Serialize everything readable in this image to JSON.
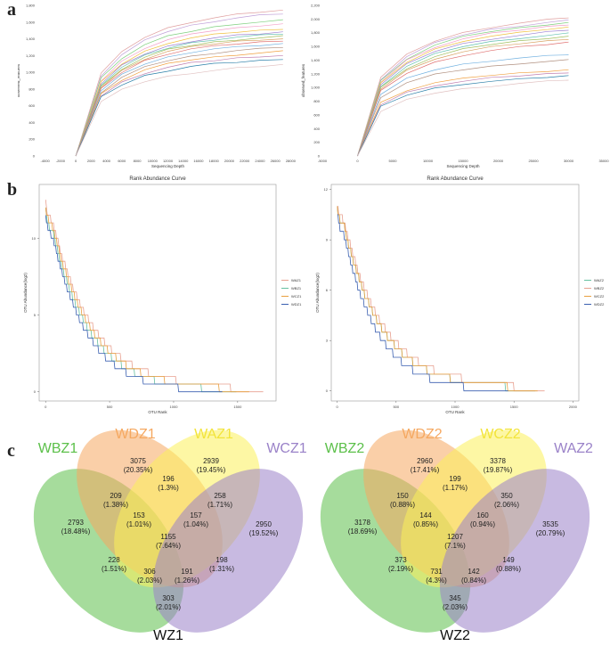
{
  "labels": {
    "a": "a",
    "b": "b",
    "c": "c"
  },
  "colors": {
    "rare": [
      "#e0a0a0",
      "#c0a0d8",
      "#7fd07f",
      "#f2a0c8",
      "#f0c040",
      "#9a7fd0",
      "#60c0b0",
      "#a0c060",
      "#d8a060",
      "#e07070",
      "#70b0e0",
      "#b09080",
      "#f0a040",
      "#c07fb0",
      "#2a7fa8",
      "#e0c0c0"
    ],
    "rank": {
      "A": "#e8a090",
      "B": "#66c0a0",
      "C": "#e8a040",
      "D": "#3a5fb0"
    },
    "venn": {
      "B": "#5cc04a",
      "D": "#f5a860",
      "C": "#fbf05a",
      "A": "#9a82c8"
    }
  },
  "chart_data": [
    {
      "type": "line",
      "panel": "a-left",
      "xlabel": "Sequencing Depth",
      "ylabel": "observed_features",
      "xlim": [
        -5000,
        29000
      ],
      "ylim": [
        0,
        1800
      ],
      "x_ticks": [
        "-4000",
        "-2000",
        "0",
        "2000",
        "4000",
        "6000",
        "8000",
        "10000",
        "12000",
        "14000",
        "16000",
        "18000",
        "20000",
        "22000",
        "24000",
        "26000",
        "28000"
      ],
      "y_ticks": [
        "0",
        "200",
        "400",
        "600",
        "800",
        "1,000",
        "1,200",
        "1,400",
        "1,600",
        "1,800"
      ],
      "x": [
        0,
        3300,
        6000,
        9000,
        12000,
        15000,
        18000,
        21000,
        24000,
        27000
      ],
      "series": [
        {
          "values": [
            0,
            990,
            1240,
            1420,
            1530,
            1600,
            1650,
            1690,
            1720,
            1740
          ]
        },
        {
          "values": [
            0,
            960,
            1210,
            1380,
            1490,
            1560,
            1610,
            1650,
            1680,
            1700
          ]
        },
        {
          "values": [
            0,
            930,
            1170,
            1330,
            1430,
            1490,
            1540,
            1580,
            1600,
            1620
          ]
        },
        {
          "values": [
            0,
            900,
            1130,
            1290,
            1390,
            1450,
            1500,
            1530,
            1560,
            1580
          ]
        },
        {
          "values": [
            0,
            880,
            1100,
            1250,
            1350,
            1410,
            1450,
            1480,
            1500,
            1520
          ]
        },
        {
          "values": [
            0,
            860,
            1080,
            1220,
            1310,
            1370,
            1410,
            1440,
            1460,
            1480
          ]
        },
        {
          "values": [
            0,
            850,
            1060,
            1200,
            1290,
            1350,
            1390,
            1420,
            1440,
            1460
          ]
        },
        {
          "values": [
            0,
            830,
            1040,
            1180,
            1270,
            1320,
            1360,
            1390,
            1410,
            1430
          ]
        },
        {
          "values": [
            0,
            820,
            1020,
            1160,
            1250,
            1300,
            1340,
            1370,
            1390,
            1400
          ]
        },
        {
          "values": [
            0,
            800,
            1000,
            1140,
            1220,
            1280,
            1310,
            1340,
            1360,
            1380
          ]
        },
        {
          "values": [
            0,
            780,
            970,
            1100,
            1180,
            1240,
            1280,
            1300,
            1320,
            1340
          ]
        },
        {
          "values": [
            0,
            760,
            940,
            1060,
            1140,
            1190,
            1230,
            1260,
            1280,
            1300
          ]
        },
        {
          "values": [
            0,
            740,
            910,
            1030,
            1100,
            1150,
            1180,
            1210,
            1230,
            1250
          ]
        },
        {
          "values": [
            0,
            720,
            880,
            990,
            1060,
            1110,
            1140,
            1170,
            1190,
            1200
          ]
        },
        {
          "values": [
            0,
            700,
            850,
            960,
            1020,
            1070,
            1100,
            1120,
            1140,
            1160
          ]
        },
        {
          "values": [
            0,
            650,
            790,
            890,
            950,
            990,
            1020,
            1050,
            1070,
            1090
          ]
        }
      ]
    },
    {
      "type": "line",
      "panel": "a-right",
      "xlabel": "Sequencing Depth",
      "ylabel": "observed_features",
      "xlim": [
        -5000,
        35000
      ],
      "ylim": [
        0,
        2200
      ],
      "x_ticks": [
        "-5000",
        "0",
        "5000",
        "10000",
        "15000",
        "20000",
        "25000",
        "30000",
        "35000"
      ],
      "y_ticks": [
        "0",
        "200",
        "400",
        "600",
        "800",
        "1,000",
        "1,200",
        "1,400",
        "1,600",
        "1,800",
        "2,000",
        "2,200"
      ],
      "x": [
        0,
        3300,
        7000,
        11000,
        15000,
        19000,
        23000,
        27000,
        30000
      ],
      "series": [
        {
          "values": [
            0,
            1150,
            1480,
            1680,
            1800,
            1880,
            1940,
            1990,
            2020
          ]
        },
        {
          "values": [
            0,
            1120,
            1450,
            1650,
            1770,
            1850,
            1900,
            1950,
            1980
          ]
        },
        {
          "values": [
            0,
            1100,
            1420,
            1620,
            1740,
            1820,
            1870,
            1920,
            1950
          ]
        },
        {
          "values": [
            0,
            1080,
            1400,
            1590,
            1710,
            1790,
            1840,
            1890,
            1920
          ]
        },
        {
          "values": [
            0,
            1060,
            1370,
            1560,
            1680,
            1750,
            1800,
            1850,
            1880
          ]
        },
        {
          "values": [
            0,
            1040,
            1340,
            1530,
            1640,
            1710,
            1760,
            1810,
            1840
          ]
        },
        {
          "values": [
            0,
            1020,
            1310,
            1490,
            1600,
            1670,
            1720,
            1760,
            1790
          ]
        },
        {
          "values": [
            0,
            1000,
            1280,
            1450,
            1560,
            1630,
            1680,
            1720,
            1750
          ]
        },
        {
          "values": [
            0,
            980,
            1250,
            1420,
            1520,
            1590,
            1640,
            1680,
            1710
          ]
        },
        {
          "values": [
            0,
            950,
            1210,
            1370,
            1470,
            1540,
            1590,
            1630,
            1660
          ]
        },
        {
          "values": [
            0,
            900,
            1130,
            1260,
            1340,
            1390,
            1430,
            1460,
            1480
          ]
        },
        {
          "values": [
            0,
            860,
            1070,
            1190,
            1260,
            1310,
            1350,
            1380,
            1400
          ]
        },
        {
          "values": [
            0,
            780,
            960,
            1070,
            1130,
            1180,
            1210,
            1240,
            1260
          ]
        },
        {
          "values": [
            0,
            750,
            930,
            1030,
            1090,
            1140,
            1170,
            1200,
            1220
          ]
        },
        {
          "values": [
            0,
            720,
            890,
            990,
            1050,
            1090,
            1120,
            1150,
            1170
          ]
        },
        {
          "values": [
            0,
            650,
            820,
            920,
            980,
            1020,
            1060,
            1090,
            1110
          ]
        }
      ]
    },
    {
      "type": "line",
      "panel": "b-left",
      "title": "Rank Abundance Curve",
      "xlabel": "OTU Rank",
      "ylabel": "OTU Abundance(log2)",
      "xlim": [
        -50,
        1800
      ],
      "ylim": [
        -0.6,
        13.5
      ],
      "x_ticks": [
        "0",
        "500",
        "1000",
        "1500"
      ],
      "x_tick_values": [
        0,
        500,
        1000,
        1500
      ],
      "y_ticks": [
        "0",
        "5",
        "10"
      ],
      "y_tick_values": [
        0,
        5,
        10
      ],
      "legend": [
        "WAZ1",
        "WBZ1",
        "WCZ1",
        "WDZ1"
      ],
      "series": [
        {
          "name": "WAZ1",
          "color_key": "A",
          "n": 1700,
          "top": 13,
          "k": 0.0032,
          "c": 0.5
        },
        {
          "name": "WBZ1",
          "color_key": "B",
          "n": 1490,
          "top": 12.6,
          "k": 0.0034,
          "c": 0.3
        },
        {
          "name": "WCZ1",
          "color_key": "C",
          "n": 1590,
          "top": 12.8,
          "k": 0.0033,
          "c": 0.4
        },
        {
          "name": "WDZ1",
          "color_key": "D",
          "n": 1380,
          "top": 12.4,
          "k": 0.0036,
          "c": 0.2
        }
      ]
    },
    {
      "type": "line",
      "panel": "b-right",
      "title": "Rank Abundance Curve",
      "xlabel": "OTU Rank",
      "ylabel": "OTU Abundance(log2)",
      "xlim": [
        -50,
        2050
      ],
      "ylim": [
        -0.6,
        12.3
      ],
      "x_ticks": [
        "0",
        "500",
        "1000",
        "1500",
        "2000"
      ],
      "x_tick_values": [
        0,
        500,
        1000,
        1500,
        2000
      ],
      "y_ticks": [
        "0",
        "3",
        "6",
        "9",
        "12"
      ],
      "y_tick_values": [
        0,
        3,
        6,
        9,
        12
      ],
      "legend": [
        "WAZ2",
        "WBZ2",
        "WCZ2",
        "WDZ2"
      ],
      "series": [
        {
          "name": "WAZ2",
          "color_key": "B",
          "n": 1680,
          "top": 11.6,
          "k": 0.0031,
          "c": 0.4
        },
        {
          "name": "WBZ2",
          "color_key": "A",
          "n": 1760,
          "top": 11.8,
          "k": 0.003,
          "c": 0.5
        },
        {
          "name": "WCZ2",
          "color_key": "C",
          "n": 1700,
          "top": 11.6,
          "k": 0.0031,
          "c": 0.4
        },
        {
          "name": "WDZ2",
          "color_key": "D",
          "n": 1450,
          "top": 11.4,
          "k": 0.0034,
          "c": 0.2
        }
      ]
    },
    {
      "type": "venn",
      "panel": "c-left",
      "name": "WZ1",
      "sets": {
        "B": "WBZ1",
        "D": "WDZ1",
        "C": "WAZ1",
        "A": "WCZ1"
      },
      "regions": {
        "B": [
          "2793",
          "(18.48%)"
        ],
        "D": [
          "3075",
          "(20.35%)"
        ],
        "C": [
          "2939",
          "(19.45%)"
        ],
        "A": [
          "2950",
          "(19.52%)"
        ],
        "BD": [
          "209",
          "(1.38%)"
        ],
        "DC": [
          "196",
          "(1.3%)"
        ],
        "CA": [
          "258",
          "(1.71%)"
        ],
        "BDC": [
          "153",
          "(1.01%)"
        ],
        "DCA": [
          "157",
          "(1.04%)"
        ],
        "BC": [
          "228",
          "(1.51%)"
        ],
        "ALL": [
          "1155",
          "(7.64%)"
        ],
        "DA": [
          "198",
          "(1.31%)"
        ],
        "BCA": [
          "306",
          "(2.03%)"
        ],
        "BDA": [
          "191",
          "(1.26%)"
        ],
        "BA": [
          "303",
          "(2.01%)"
        ]
      }
    },
    {
      "type": "venn",
      "panel": "c-right",
      "name": "WZ2",
      "sets": {
        "B": "WBZ2",
        "D": "WDZ2",
        "C": "WCZ2",
        "A": "WAZ2"
      },
      "regions": {
        "B": [
          "3178",
          "(18.69%)"
        ],
        "D": [
          "2960",
          "(17.41%)"
        ],
        "C": [
          "3378",
          "(19.87%)"
        ],
        "A": [
          "3535",
          "(20.79%)"
        ],
        "BD": [
          "150",
          "(0.88%)"
        ],
        "DC": [
          "199",
          "(1.17%)"
        ],
        "CA": [
          "350",
          "(2.06%)"
        ],
        "BDC": [
          "144",
          "(0.85%)"
        ],
        "DCA": [
          "160",
          "(0.94%)"
        ],
        "BC": [
          "373",
          "(2.19%)"
        ],
        "ALL": [
          "1207",
          "(7.1%)"
        ],
        "DA": [
          "149",
          "(0.88%)"
        ],
        "BCA": [
          "731",
          "(4.3%)"
        ],
        "BDA": [
          "142",
          "(0.84%)"
        ],
        "BA": [
          "345",
          "(2.03%)"
        ]
      }
    }
  ]
}
